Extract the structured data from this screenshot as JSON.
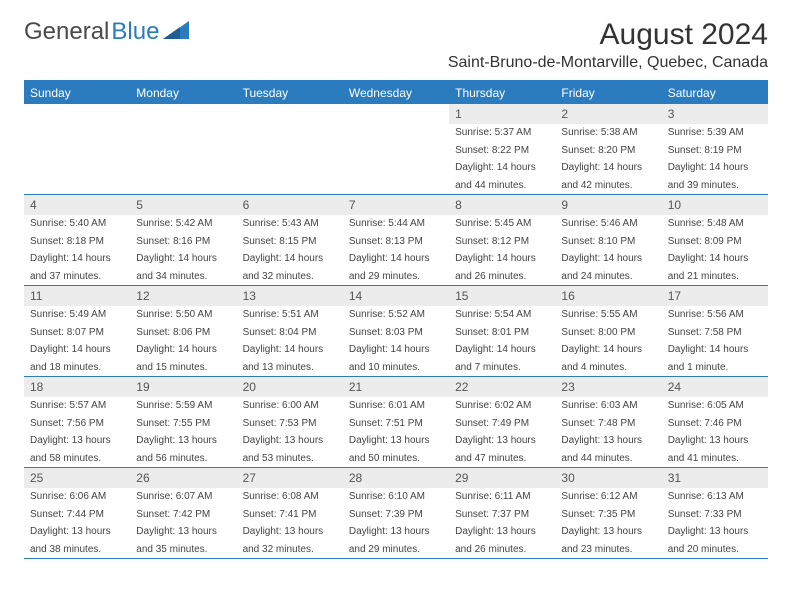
{
  "logo": {
    "part1": "General",
    "part2": "Blue"
  },
  "title": "August 2024",
  "location": "Saint-Bruno-de-Montarville, Quebec, Canada",
  "colors": {
    "accent": "#2b7bbf",
    "daynum_bg": "#ececec",
    "text": "#333333",
    "info_text": "#444444"
  },
  "weekdays": [
    "Sunday",
    "Monday",
    "Tuesday",
    "Wednesday",
    "Thursday",
    "Friday",
    "Saturday"
  ],
  "weeks": [
    [
      null,
      null,
      null,
      null,
      {
        "n": "1",
        "sr": "Sunrise: 5:37 AM",
        "ss": "Sunset: 8:22 PM",
        "d1": "Daylight: 14 hours",
        "d2": "and 44 minutes."
      },
      {
        "n": "2",
        "sr": "Sunrise: 5:38 AM",
        "ss": "Sunset: 8:20 PM",
        "d1": "Daylight: 14 hours",
        "d2": "and 42 minutes."
      },
      {
        "n": "3",
        "sr": "Sunrise: 5:39 AM",
        "ss": "Sunset: 8:19 PM",
        "d1": "Daylight: 14 hours",
        "d2": "and 39 minutes."
      }
    ],
    [
      {
        "n": "4",
        "sr": "Sunrise: 5:40 AM",
        "ss": "Sunset: 8:18 PM",
        "d1": "Daylight: 14 hours",
        "d2": "and 37 minutes."
      },
      {
        "n": "5",
        "sr": "Sunrise: 5:42 AM",
        "ss": "Sunset: 8:16 PM",
        "d1": "Daylight: 14 hours",
        "d2": "and 34 minutes."
      },
      {
        "n": "6",
        "sr": "Sunrise: 5:43 AM",
        "ss": "Sunset: 8:15 PM",
        "d1": "Daylight: 14 hours",
        "d2": "and 32 minutes."
      },
      {
        "n": "7",
        "sr": "Sunrise: 5:44 AM",
        "ss": "Sunset: 8:13 PM",
        "d1": "Daylight: 14 hours",
        "d2": "and 29 minutes."
      },
      {
        "n": "8",
        "sr": "Sunrise: 5:45 AM",
        "ss": "Sunset: 8:12 PM",
        "d1": "Daylight: 14 hours",
        "d2": "and 26 minutes."
      },
      {
        "n": "9",
        "sr": "Sunrise: 5:46 AM",
        "ss": "Sunset: 8:10 PM",
        "d1": "Daylight: 14 hours",
        "d2": "and 24 minutes."
      },
      {
        "n": "10",
        "sr": "Sunrise: 5:48 AM",
        "ss": "Sunset: 8:09 PM",
        "d1": "Daylight: 14 hours",
        "d2": "and 21 minutes."
      }
    ],
    [
      {
        "n": "11",
        "sr": "Sunrise: 5:49 AM",
        "ss": "Sunset: 8:07 PM",
        "d1": "Daylight: 14 hours",
        "d2": "and 18 minutes."
      },
      {
        "n": "12",
        "sr": "Sunrise: 5:50 AM",
        "ss": "Sunset: 8:06 PM",
        "d1": "Daylight: 14 hours",
        "d2": "and 15 minutes."
      },
      {
        "n": "13",
        "sr": "Sunrise: 5:51 AM",
        "ss": "Sunset: 8:04 PM",
        "d1": "Daylight: 14 hours",
        "d2": "and 13 minutes."
      },
      {
        "n": "14",
        "sr": "Sunrise: 5:52 AM",
        "ss": "Sunset: 8:03 PM",
        "d1": "Daylight: 14 hours",
        "d2": "and 10 minutes."
      },
      {
        "n": "15",
        "sr": "Sunrise: 5:54 AM",
        "ss": "Sunset: 8:01 PM",
        "d1": "Daylight: 14 hours",
        "d2": "and 7 minutes."
      },
      {
        "n": "16",
        "sr": "Sunrise: 5:55 AM",
        "ss": "Sunset: 8:00 PM",
        "d1": "Daylight: 14 hours",
        "d2": "and 4 minutes."
      },
      {
        "n": "17",
        "sr": "Sunrise: 5:56 AM",
        "ss": "Sunset: 7:58 PM",
        "d1": "Daylight: 14 hours",
        "d2": "and 1 minute."
      }
    ],
    [
      {
        "n": "18",
        "sr": "Sunrise: 5:57 AM",
        "ss": "Sunset: 7:56 PM",
        "d1": "Daylight: 13 hours",
        "d2": "and 58 minutes."
      },
      {
        "n": "19",
        "sr": "Sunrise: 5:59 AM",
        "ss": "Sunset: 7:55 PM",
        "d1": "Daylight: 13 hours",
        "d2": "and 56 minutes."
      },
      {
        "n": "20",
        "sr": "Sunrise: 6:00 AM",
        "ss": "Sunset: 7:53 PM",
        "d1": "Daylight: 13 hours",
        "d2": "and 53 minutes."
      },
      {
        "n": "21",
        "sr": "Sunrise: 6:01 AM",
        "ss": "Sunset: 7:51 PM",
        "d1": "Daylight: 13 hours",
        "d2": "and 50 minutes."
      },
      {
        "n": "22",
        "sr": "Sunrise: 6:02 AM",
        "ss": "Sunset: 7:49 PM",
        "d1": "Daylight: 13 hours",
        "d2": "and 47 minutes."
      },
      {
        "n": "23",
        "sr": "Sunrise: 6:03 AM",
        "ss": "Sunset: 7:48 PM",
        "d1": "Daylight: 13 hours",
        "d2": "and 44 minutes."
      },
      {
        "n": "24",
        "sr": "Sunrise: 6:05 AM",
        "ss": "Sunset: 7:46 PM",
        "d1": "Daylight: 13 hours",
        "d2": "and 41 minutes."
      }
    ],
    [
      {
        "n": "25",
        "sr": "Sunrise: 6:06 AM",
        "ss": "Sunset: 7:44 PM",
        "d1": "Daylight: 13 hours",
        "d2": "and 38 minutes."
      },
      {
        "n": "26",
        "sr": "Sunrise: 6:07 AM",
        "ss": "Sunset: 7:42 PM",
        "d1": "Daylight: 13 hours",
        "d2": "and 35 minutes."
      },
      {
        "n": "27",
        "sr": "Sunrise: 6:08 AM",
        "ss": "Sunset: 7:41 PM",
        "d1": "Daylight: 13 hours",
        "d2": "and 32 minutes."
      },
      {
        "n": "28",
        "sr": "Sunrise: 6:10 AM",
        "ss": "Sunset: 7:39 PM",
        "d1": "Daylight: 13 hours",
        "d2": "and 29 minutes."
      },
      {
        "n": "29",
        "sr": "Sunrise: 6:11 AM",
        "ss": "Sunset: 7:37 PM",
        "d1": "Daylight: 13 hours",
        "d2": "and 26 minutes."
      },
      {
        "n": "30",
        "sr": "Sunrise: 6:12 AM",
        "ss": "Sunset: 7:35 PM",
        "d1": "Daylight: 13 hours",
        "d2": "and 23 minutes."
      },
      {
        "n": "31",
        "sr": "Sunrise: 6:13 AM",
        "ss": "Sunset: 7:33 PM",
        "d1": "Daylight: 13 hours",
        "d2": "and 20 minutes."
      }
    ]
  ]
}
